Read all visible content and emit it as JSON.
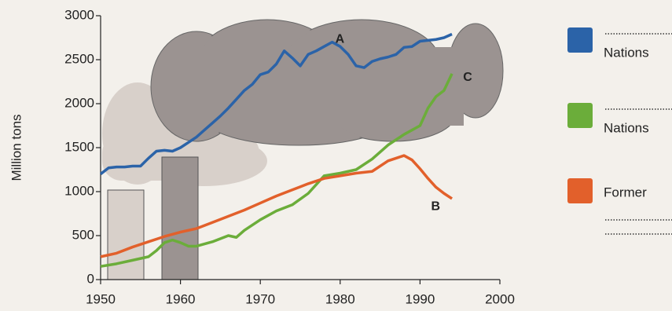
{
  "chart_data": {
    "type": "line",
    "y_label": "Million tons",
    "xlim": [
      1950,
      2000
    ],
    "xticks": [
      1950,
      1960,
      1970,
      1980,
      1990,
      2000
    ],
    "ylim": [
      0,
      3000
    ],
    "yticks": [
      0,
      500,
      1000,
      1500,
      2000,
      2500,
      3000
    ],
    "series": [
      {
        "name": "Nations",
        "label": "A",
        "color": "#2b63a8",
        "x": [
          1950,
          1951,
          1952,
          1953,
          1954,
          1955,
          1956,
          1957,
          1958,
          1959,
          1960,
          1961,
          1962,
          1963,
          1964,
          1965,
          1966,
          1967,
          1968,
          1969,
          1970,
          1971,
          1972,
          1973,
          1974,
          1975,
          1976,
          1977,
          1978,
          1979,
          1980,
          1981,
          1982,
          1983,
          1984,
          1985,
          1986,
          1987,
          1988,
          1989,
          1990,
          1991,
          1992,
          1993,
          1994
        ],
        "values": [
          1200,
          1270,
          1280,
          1280,
          1290,
          1290,
          1380,
          1460,
          1470,
          1460,
          1500,
          1560,
          1620,
          1700,
          1780,
          1860,
          1950,
          2050,
          2150,
          2220,
          2330,
          2360,
          2450,
          2600,
          2520,
          2430,
          2560,
          2600,
          2650,
          2700,
          2650,
          2560,
          2430,
          2410,
          2480,
          2510,
          2530,
          2560,
          2640,
          2650,
          2710,
          2720,
          2730,
          2750,
          2790
        ]
      },
      {
        "name": "Nations",
        "label": "C",
        "color": "#6bad3a",
        "x": [
          1950,
          1952,
          1954,
          1956,
          1957,
          1958,
          1959,
          1960,
          1961,
          1962,
          1964,
          1966,
          1967,
          1968,
          1970,
          1972,
          1974,
          1976,
          1978,
          1980,
          1982,
          1984,
          1986,
          1988,
          1990,
          1991,
          1992,
          1993,
          1994
        ],
        "values": [
          150,
          180,
          220,
          260,
          330,
          420,
          450,
          420,
          380,
          380,
          430,
          500,
          480,
          560,
          680,
          780,
          850,
          980,
          1180,
          1210,
          1250,
          1370,
          1530,
          1650,
          1750,
          1950,
          2080,
          2150,
          2340
        ]
      },
      {
        "name": "Former",
        "label": "B",
        "color": "#e2602b",
        "x": [
          1950,
          1952,
          1954,
          1956,
          1958,
          1960,
          1962,
          1964,
          1966,
          1968,
          1970,
          1972,
          1974,
          1976,
          1978,
          1980,
          1982,
          1984,
          1986,
          1987,
          1988,
          1989,
          1990,
          1991,
          1992,
          1993,
          1994
        ],
        "values": [
          260,
          300,
          370,
          430,
          490,
          540,
          580,
          650,
          720,
          790,
          870,
          950,
          1020,
          1090,
          1150,
          1180,
          1210,
          1230,
          1350,
          1380,
          1410,
          1360,
          1260,
          1150,
          1050,
          980,
          920
        ]
      }
    ]
  }
}
